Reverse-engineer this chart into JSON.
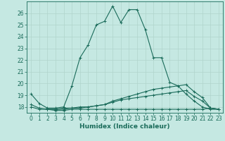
{
  "xlabel": "Humidex (Indice chaleur)",
  "xlim": [
    -0.5,
    23.5
  ],
  "ylim": [
    17.5,
    27.0
  ],
  "yticks": [
    18,
    19,
    20,
    21,
    22,
    23,
    24,
    25,
    26
  ],
  "xticks": [
    0,
    1,
    2,
    3,
    4,
    5,
    6,
    7,
    8,
    9,
    10,
    11,
    12,
    13,
    14,
    15,
    16,
    17,
    18,
    19,
    20,
    21,
    22,
    23
  ],
  "bg_color": "#c5e8e2",
  "grid_color": "#b0d4cc",
  "line_color": "#1a6b5a",
  "line1_x": [
    0,
    1,
    2,
    3,
    4,
    5,
    6,
    7,
    8,
    9,
    10,
    11,
    12,
    13,
    14,
    15,
    16,
    17,
    18,
    19,
    20,
    21,
    22,
    23
  ],
  "line1_y": [
    19.1,
    18.3,
    17.9,
    17.9,
    18.0,
    19.8,
    22.2,
    23.3,
    25.0,
    25.3,
    26.6,
    25.2,
    26.3,
    26.3,
    24.6,
    22.2,
    22.2,
    20.1,
    19.8,
    19.1,
    18.5,
    18.0,
    17.8,
    17.8
  ],
  "line2_x": [
    0,
    1,
    2,
    3,
    4,
    5,
    6,
    7,
    8,
    9,
    10,
    11,
    12,
    13,
    14,
    15,
    16,
    17,
    18,
    19,
    20,
    21,
    22,
    23
  ],
  "line2_y": [
    18.2,
    17.9,
    17.8,
    17.8,
    17.8,
    17.9,
    17.9,
    18.0,
    18.1,
    18.2,
    18.5,
    18.7,
    18.9,
    19.1,
    19.3,
    19.5,
    19.6,
    19.7,
    19.8,
    19.9,
    19.3,
    18.8,
    17.9,
    17.8
  ],
  "line3_x": [
    0,
    1,
    2,
    3,
    4,
    5,
    6,
    7,
    8,
    9,
    10,
    11,
    12,
    13,
    14,
    15,
    16,
    17,
    18,
    19,
    20,
    21,
    22,
    23
  ],
  "line3_y": [
    18.0,
    17.8,
    17.8,
    17.8,
    17.9,
    17.9,
    18.0,
    18.0,
    18.1,
    18.2,
    18.4,
    18.6,
    18.7,
    18.8,
    18.9,
    19.0,
    19.1,
    19.2,
    19.3,
    19.4,
    18.9,
    18.5,
    17.9,
    17.8
  ],
  "line4_x": [
    2,
    3,
    4,
    5,
    6,
    7,
    8,
    9,
    10,
    11,
    12,
    13,
    14,
    15,
    16,
    17,
    18,
    19,
    20,
    21,
    22,
    23
  ],
  "line4_y": [
    17.8,
    17.7,
    17.7,
    17.8,
    17.8,
    17.8,
    17.8,
    17.8,
    17.8,
    17.8,
    17.8,
    17.8,
    17.8,
    17.8,
    17.8,
    17.8,
    17.8,
    17.8,
    17.8,
    17.8,
    17.9,
    17.8
  ]
}
